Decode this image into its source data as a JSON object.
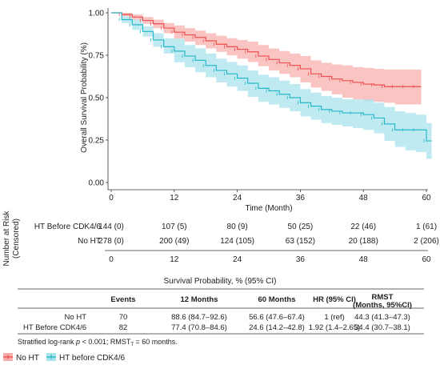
{
  "chart_data": {
    "type": "line",
    "subtype": "kaplan-meier",
    "xlabel": "Time (Month)",
    "ylabel": "Overall Survival Probability (%)",
    "xlim": [
      0,
      60
    ],
    "ylim": [
      0,
      1
    ],
    "x_ticks": [
      "0",
      "12",
      "24",
      "36",
      "48",
      "60"
    ],
    "y_ticks": [
      "0.00",
      "0.25",
      "0.50",
      "0.75",
      "1.00"
    ],
    "grid": false,
    "series": [
      {
        "name": "No HT",
        "color": "#ef4f4f",
        "band_color": "#f7b0ad",
        "x": [
          0,
          2,
          4,
          6,
          8,
          10,
          12,
          14,
          16,
          18,
          20,
          22,
          24,
          26,
          28,
          30,
          32,
          34,
          36,
          38,
          40,
          42,
          44,
          46,
          48,
          50,
          52,
          54,
          56,
          58
        ],
        "y": [
          1.0,
          0.99,
          0.975,
          0.955,
          0.935,
          0.91,
          0.886,
          0.87,
          0.855,
          0.835,
          0.815,
          0.8,
          0.785,
          0.77,
          0.745,
          0.725,
          0.705,
          0.69,
          0.67,
          0.64,
          0.625,
          0.61,
          0.6,
          0.59,
          0.58,
          0.575,
          0.565,
          0.565,
          0.565,
          0.565
        ],
        "lower": [
          1.0,
          0.98,
          0.96,
          0.935,
          0.91,
          0.88,
          0.847,
          0.83,
          0.81,
          0.79,
          0.77,
          0.75,
          0.73,
          0.71,
          0.685,
          0.66,
          0.64,
          0.62,
          0.59,
          0.56,
          0.54,
          0.52,
          0.5,
          0.49,
          0.48,
          0.475,
          0.47,
          0.46,
          0.46,
          0.46
        ],
        "upper": [
          1.0,
          1.0,
          0.99,
          0.975,
          0.96,
          0.94,
          0.926,
          0.91,
          0.895,
          0.88,
          0.865,
          0.85,
          0.84,
          0.83,
          0.81,
          0.79,
          0.775,
          0.76,
          0.745,
          0.72,
          0.705,
          0.695,
          0.69,
          0.68,
          0.675,
          0.67,
          0.665,
          0.665,
          0.665,
          0.665
        ]
      },
      {
        "name": "HT before CDK4/6",
        "color": "#26b8c9",
        "band_color": "#a9e3ec",
        "x": [
          0,
          2,
          4,
          6,
          8,
          10,
          12,
          14,
          16,
          18,
          20,
          22,
          24,
          26,
          28,
          30,
          32,
          34,
          36,
          38,
          40,
          42,
          44,
          46,
          48,
          50,
          52,
          54,
          56,
          58,
          60
        ],
        "y": [
          1.0,
          0.96,
          0.93,
          0.89,
          0.84,
          0.8,
          0.774,
          0.745,
          0.72,
          0.69,
          0.66,
          0.64,
          0.615,
          0.585,
          0.555,
          0.54,
          0.52,
          0.5,
          0.47,
          0.45,
          0.43,
          0.42,
          0.41,
          0.41,
          0.4,
          0.38,
          0.345,
          0.31,
          0.31,
          0.31,
          0.245
        ],
        "lower": [
          1.0,
          0.94,
          0.9,
          0.86,
          0.8,
          0.76,
          0.708,
          0.68,
          0.65,
          0.62,
          0.59,
          0.565,
          0.54,
          0.505,
          0.475,
          0.46,
          0.44,
          0.42,
          0.39,
          0.37,
          0.35,
          0.34,
          0.33,
          0.32,
          0.31,
          0.29,
          0.245,
          0.21,
          0.19,
          0.18,
          0.14
        ],
        "upper": [
          1.0,
          0.98,
          0.96,
          0.92,
          0.88,
          0.85,
          0.846,
          0.81,
          0.79,
          0.76,
          0.73,
          0.71,
          0.69,
          0.66,
          0.635,
          0.62,
          0.6,
          0.58,
          0.55,
          0.53,
          0.51,
          0.5,
          0.49,
          0.49,
          0.49,
          0.47,
          0.445,
          0.42,
          0.41,
          0.4,
          0.35
        ]
      }
    ]
  },
  "risk_table": {
    "title_line1": "Number at Risk",
    "title_line2": "(Censored)",
    "rows": [
      {
        "label": "HT Before CDK4/6",
        "cells": [
          "144 (0)",
          "107 (5)",
          "80 (9)",
          "50 (25)",
          "22 (46)",
          "1 (61)"
        ]
      },
      {
        "label": "No HT",
        "cells": [
          "278 (0)",
          "200 (49)",
          "124 (105)",
          "63 (152)",
          "20 (188)",
          "2 (206)"
        ]
      }
    ],
    "x_ticks": [
      "0",
      "12",
      "24",
      "36",
      "48",
      "60"
    ]
  },
  "summary_table": {
    "caption": "Survival Probability, % (95% CI)",
    "headers": [
      "",
      "Events",
      "12 Months",
      "60 Months",
      "HR (95% CI)",
      "RMST",
      "(Months, 95%CI)"
    ],
    "rows": [
      {
        "label": "No HT",
        "events": "70",
        "m12": "88.6 (84.7–92.6)",
        "m60": "56.6 (47.6–67.4)",
        "hr": "1 (ref)",
        "rmst": "44.3 (41.3–47.3)"
      },
      {
        "label": "HT Before CDK4/6",
        "events": "82",
        "m12": "77.4 (70.8–84.6)",
        "m60": "24.6 (14.2–42.8)",
        "hr": "1.92 (1.4–2.65)",
        "rmst": "34.4 (30.7–38.1)"
      }
    ],
    "footnote_a": "Stratified log-rank ",
    "footnote_p": "p",
    "footnote_b": " < 0.001; RMST",
    "footnote_sub": "T",
    "footnote_c": " = 60 months."
  },
  "legend": {
    "items": [
      {
        "label": "No HT",
        "color": "#ef4f4f",
        "fill": "#f7b0ad"
      },
      {
        "label": "HT before CDK4/6",
        "color": "#26b8c9",
        "fill": "#a9e3ec"
      }
    ]
  }
}
